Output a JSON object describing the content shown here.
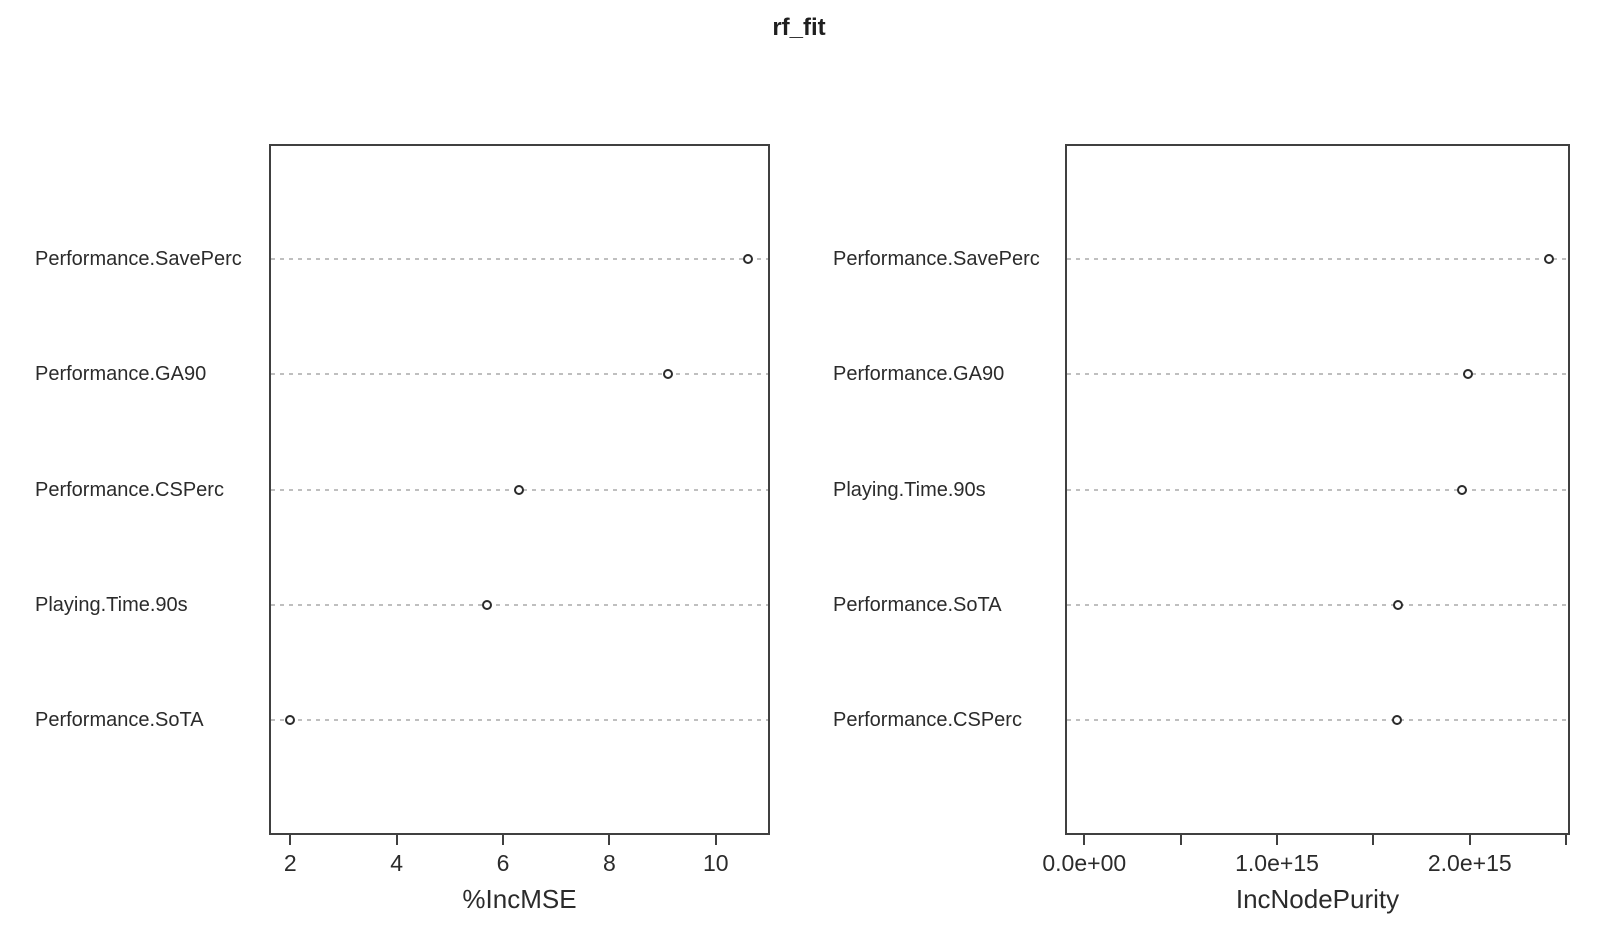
{
  "title": "rf_fit",
  "chart_data": [
    {
      "type": "scatter",
      "subtype": "dotchart",
      "title": "rf_fit",
      "xlabel": "%IncMSE",
      "ylabel": "",
      "categories": [
        "Performance.SavePerc",
        "Performance.GA90",
        "Performance.CSPerc",
        "Playing.Time.90s",
        "Performance.SoTA"
      ],
      "values": [
        10.6,
        9.1,
        6.3,
        5.7,
        2.0
      ],
      "xlim": [
        1.6,
        11.02
      ],
      "xticks": [
        {
          "value": 2,
          "label": "2"
        },
        {
          "value": 4,
          "label": "4"
        },
        {
          "value": 6,
          "label": "6"
        },
        {
          "value": 8,
          "label": "8"
        },
        {
          "value": 10,
          "label": "10"
        }
      ],
      "grid": "horizontal dotted",
      "legend": "none",
      "point_style": "open-circle"
    },
    {
      "type": "scatter",
      "subtype": "dotchart",
      "title": "rf_fit",
      "xlabel": "IncNodePurity",
      "ylabel": "",
      "categories": [
        "Performance.SavePerc",
        "Performance.GA90",
        "Playing.Time.90s",
        "Performance.SoTA",
        "Performance.CSPerc"
      ],
      "values": [
        2410000000000000.0,
        1990000000000000.0,
        1960000000000000.0,
        1630000000000000.0,
        1620000000000000.0
      ],
      "xlim": [
        -100000000000000.0,
        2520000000000000.0
      ],
      "xticks": [
        {
          "value": 0.0,
          "label": "0.0e+00"
        },
        {
          "value": 500000000000000.0,
          "label": ""
        },
        {
          "value": 1000000000000000.0,
          "label": "1.0e+15"
        },
        {
          "value": 1500000000000000.0,
          "label": ""
        },
        {
          "value": 2000000000000000.0,
          "label": "2.0e+15"
        },
        {
          "value": 2500000000000000.0,
          "label": ""
        }
      ],
      "grid": "horizontal dotted",
      "legend": "none",
      "point_style": "open-circle"
    }
  ],
  "colors": {
    "background": "#ffffff",
    "box_border": "#404040",
    "gridline": "#bfbfbf",
    "point_stroke": "#2b2b2b",
    "text": "#262626"
  }
}
